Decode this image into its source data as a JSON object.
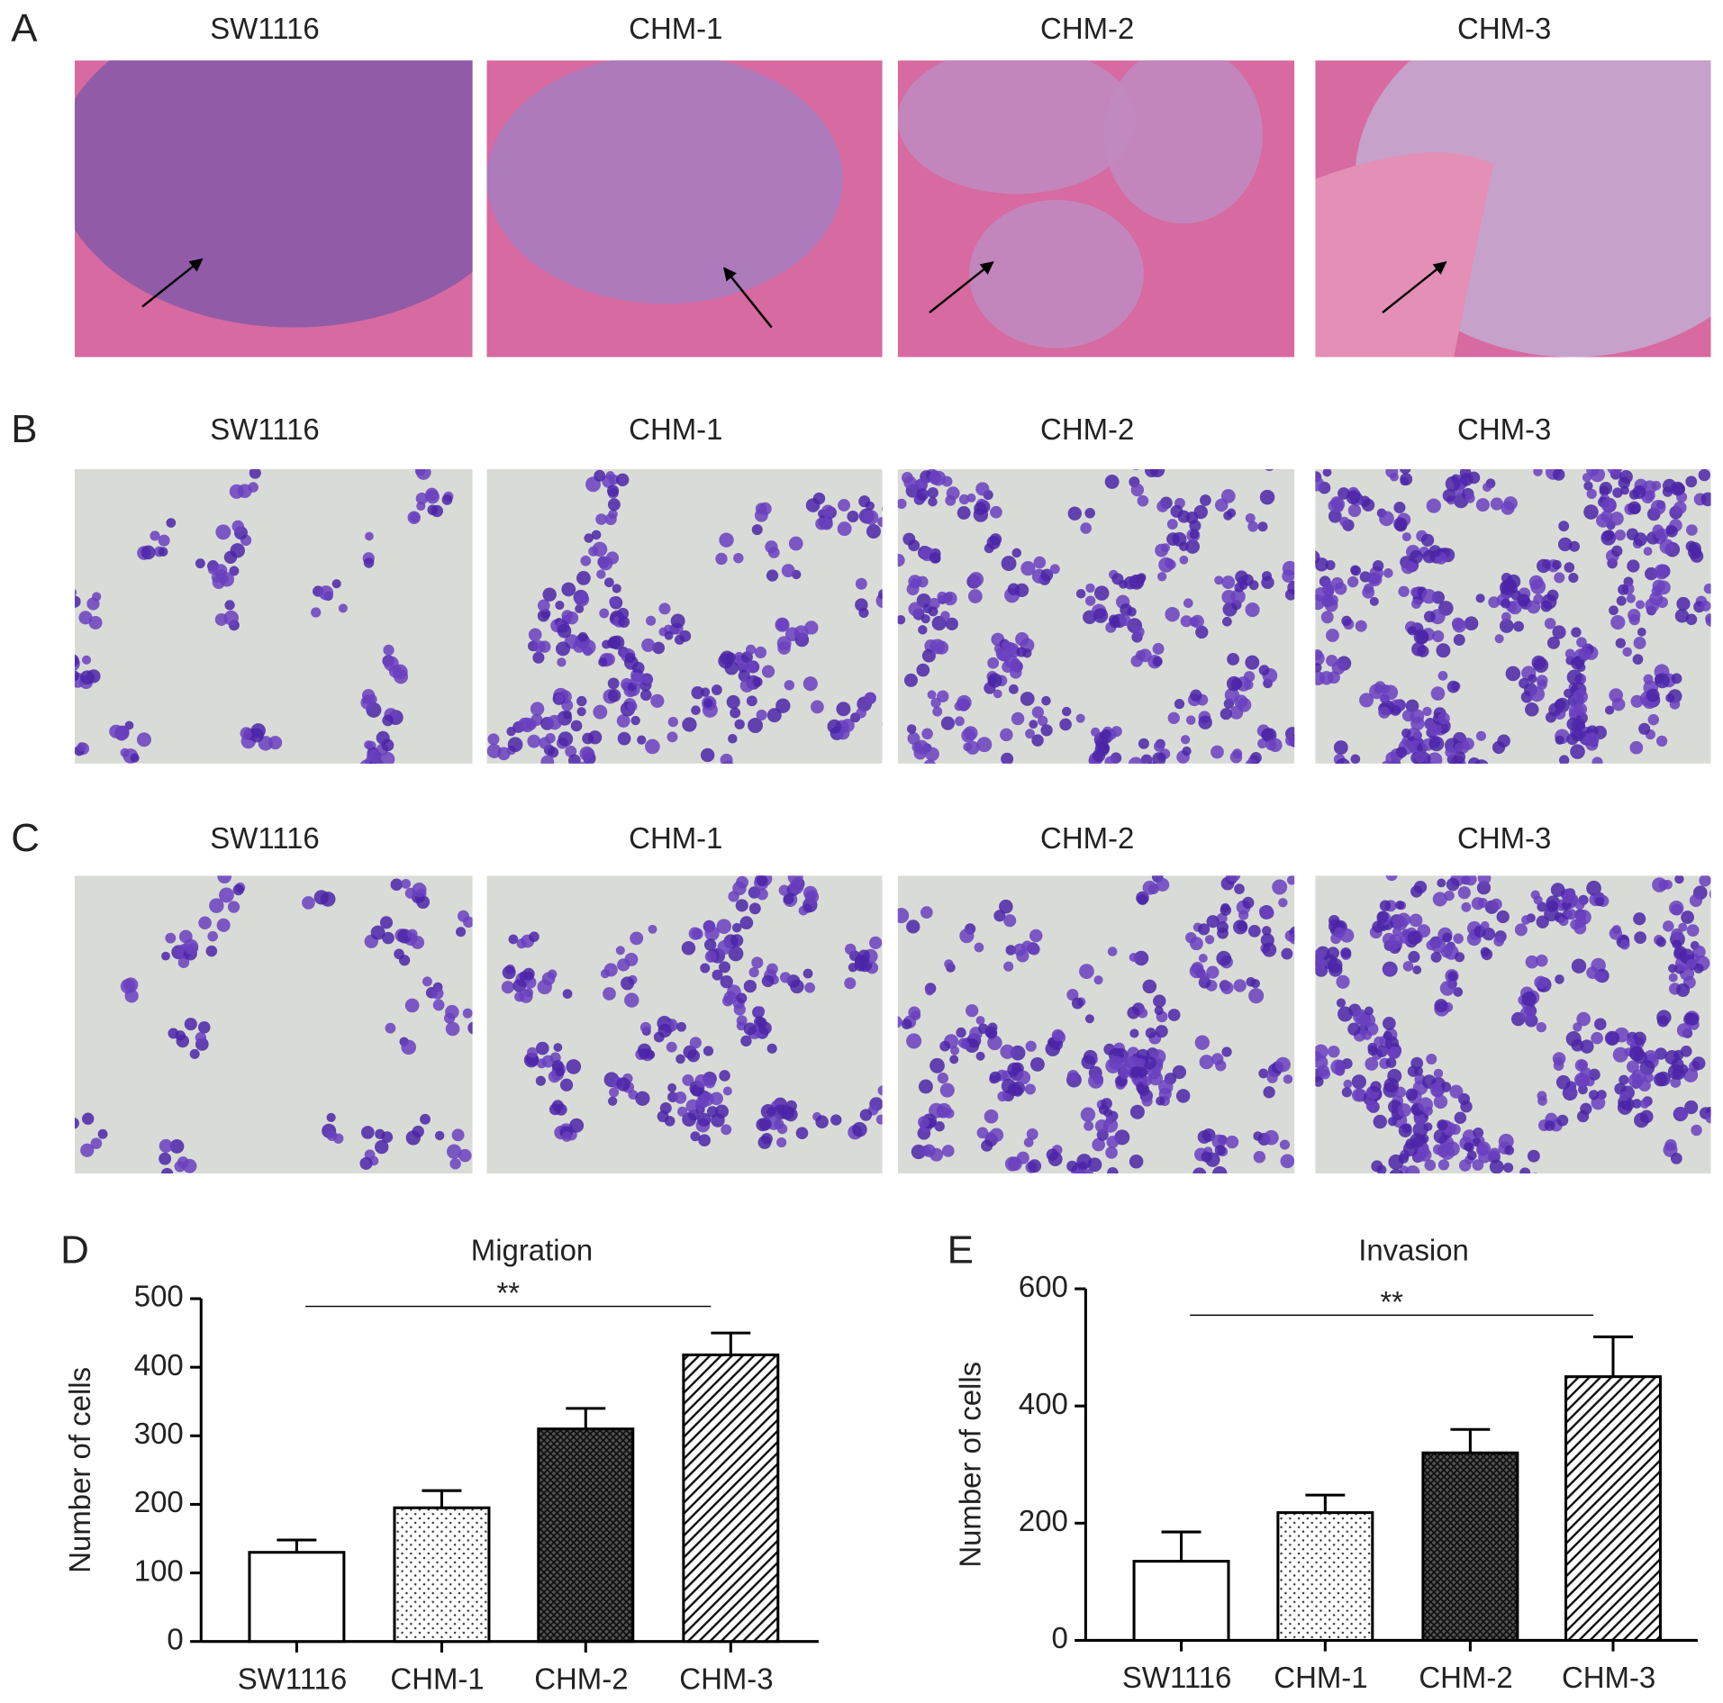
{
  "photo_panels": [
    {
      "letter": "A",
      "labels": [
        "SW1116",
        "CHM-1",
        "CHM-2",
        "CHM-3"
      ]
    },
    {
      "letter": "B",
      "labels": [
        "SW1116",
        "CHM-1",
        "CHM-2",
        "CHM-3"
      ]
    },
    {
      "letter": "C",
      "labels": [
        "SW1116",
        "CHM-1",
        "CHM-2",
        "CHM-3"
      ]
    }
  ],
  "chart_data": [
    {
      "type": "bar",
      "panel": "D",
      "title": "Migration",
      "y_label": "Number of cells",
      "categories": [
        "SW1116",
        "CHM-1",
        "CHM-2",
        "CHM-3"
      ],
      "values": [
        130,
        195,
        310,
        418
      ],
      "errors": [
        18,
        25,
        30,
        32
      ],
      "patterns": [
        "none",
        "dots",
        "crosshatch",
        "diagonal"
      ],
      "annotation": "**",
      "ylim": [
        0,
        500
      ],
      "yticks": [
        0,
        100,
        200,
        300,
        400,
        500
      ]
    },
    {
      "type": "bar",
      "panel": "E",
      "title": "Invasion",
      "y_label": "Number of cells",
      "categories": [
        "SW1116",
        "CHM-1",
        "CHM-2",
        "CHM-3"
      ],
      "values": [
        135,
        218,
        320,
        450
      ],
      "errors": [
        50,
        30,
        40,
        68
      ],
      "patterns": [
        "none",
        "dots",
        "crosshatch",
        "diagonal"
      ],
      "annotation": "**",
      "ylim": [
        0,
        600
      ],
      "yticks": [
        0,
        200,
        400,
        600
      ]
    }
  ]
}
